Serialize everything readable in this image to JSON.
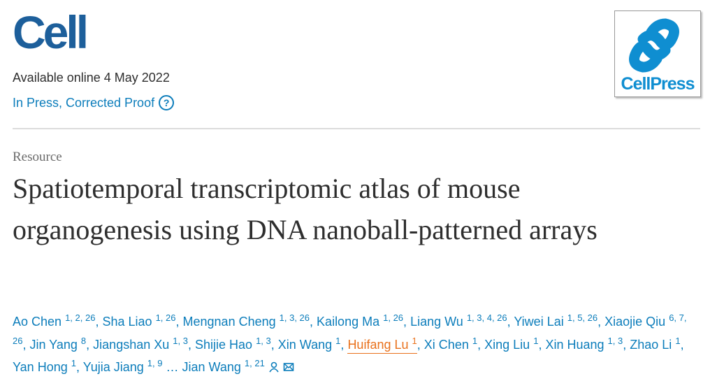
{
  "header": {
    "journal": "Cell",
    "publisher_logo": "CellPress",
    "availability": "Available online 4 May 2022",
    "status": "In Press, Corrected Proof",
    "help_icon": "?"
  },
  "article": {
    "type": "Resource",
    "title": "Spatiotemporal transcriptomic atlas of mouse organogenesis using DNA nanoball-patterned arrays"
  },
  "authors": {
    "separator": ",",
    "ellipsis": "…",
    "list": [
      {
        "name": "Ao Chen",
        "affiliations": "1, 2, 26"
      },
      {
        "name": "Sha Liao",
        "affiliations": "1, 26"
      },
      {
        "name": "Mengnan Cheng",
        "affiliations": "1, 3, 26"
      },
      {
        "name": "Kailong Ma",
        "affiliations": "1, 26"
      },
      {
        "name": "Liang Wu",
        "affiliations": "1, 3, 4, 26"
      },
      {
        "name": "Yiwei Lai",
        "affiliations": "1, 5, 26"
      },
      {
        "name": "Xiaojie Qiu",
        "affiliations": "6, 7, 26"
      },
      {
        "name": "Jin Yang",
        "affiliations": "8"
      },
      {
        "name": "Jiangshan Xu",
        "affiliations": "1, 3"
      },
      {
        "name": "Shijie Hao",
        "affiliations": "1, 3"
      },
      {
        "name": "Xin Wang",
        "affiliations": "1"
      },
      {
        "name": "Huifang Lu",
        "affiliations": "1"
      },
      {
        "name": "Xi Chen",
        "affiliations": "1"
      },
      {
        "name": "Xing Liu",
        "affiliations": "1"
      },
      {
        "name": "Xin Huang",
        "affiliations": "1, 3"
      },
      {
        "name": "Zhao Li",
        "affiliations": "1"
      },
      {
        "name": "Yan Hong",
        "affiliations": "1"
      },
      {
        "name": "Yujia Jiang",
        "affiliations": "1, 9"
      },
      {
        "name": "Jian Wang",
        "affiliations": "1, 21"
      }
    ]
  }
}
